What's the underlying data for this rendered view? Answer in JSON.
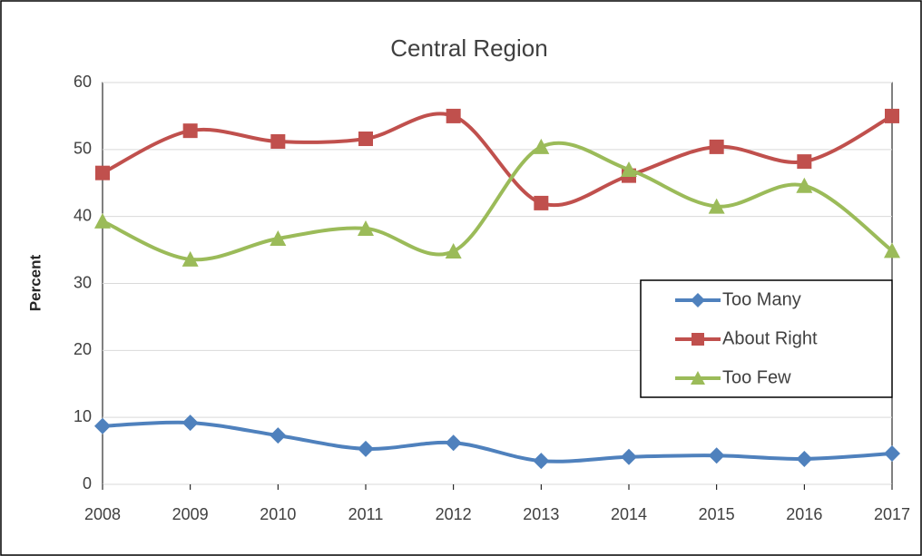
{
  "chart_data": {
    "type": "line",
    "title": "Central Region",
    "ylabel": "Percent",
    "x": [
      2008,
      2009,
      2010,
      2011,
      2012,
      2013,
      2014,
      2015,
      2016,
      2017
    ],
    "xlim": [
      2008,
      2017
    ],
    "xticks": [
      2008,
      2009,
      2010,
      2011,
      2012,
      2013,
      2014,
      2015,
      2016,
      2017
    ],
    "ylim": [
      0,
      60
    ],
    "yticks": [
      0,
      10,
      20,
      30,
      40,
      50,
      60
    ],
    "grid": true,
    "smooth": true,
    "legend": "right",
    "series": [
      {
        "name": "Too Many",
        "color": "#4f81bd",
        "marker": "diamond",
        "values": [
          8.7,
          9.2,
          7.3,
          5.3,
          6.2,
          3.5,
          4.1,
          4.3,
          3.8,
          4.6
        ]
      },
      {
        "name": "About Right",
        "color": "#c0504d",
        "marker": "square",
        "values": [
          46.5,
          52.8,
          51.2,
          51.6,
          55.0,
          42.0,
          46.1,
          50.4,
          48.2,
          55.0
        ]
      },
      {
        "name": "Too Few",
        "color": "#9bbb59",
        "marker": "triangle",
        "values": [
          39.3,
          33.6,
          36.7,
          38.2,
          34.8,
          50.4,
          47.0,
          41.5,
          44.6,
          34.9
        ]
      }
    ]
  }
}
